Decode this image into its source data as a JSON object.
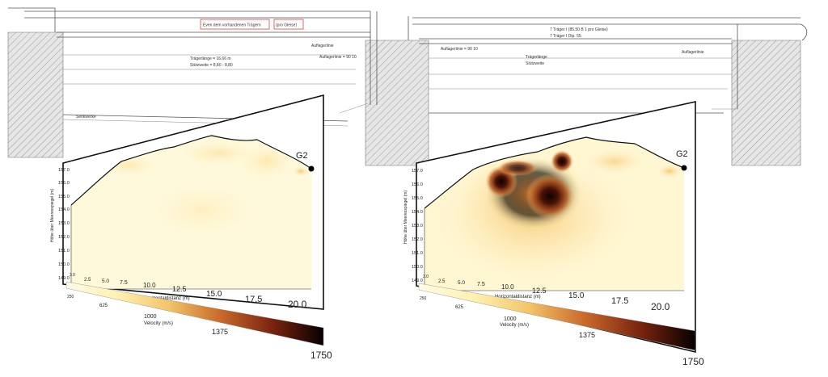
{
  "drawing": {
    "box_left_text": "Even dem vorhandenen Trägern",
    "box_right_text": "(pro Gleise)",
    "notes_left": [
      "Auflagerlinie",
      "Trägerlänge = 16.66 m",
      "Stützweite = 8,80 - 8,80",
      "Auflagerlinie = 90 10",
      "Senkwerke"
    ],
    "notes_right": [
      "7 Träger I (85.50 B 1 pro Gleise)",
      "7 Träger I Dip. 55",
      "Auflagerlinie = 90 10",
      "Trägerlänge",
      "Stützweite",
      "Auflagerlinie"
    ]
  },
  "panels": [
    {
      "label": "G2",
      "xlabel": "Horizontaldistanz (m)",
      "ylabel": "Höhe über Meeresspiegel (m)",
      "xticks": [
        "3.0",
        "2.5",
        "5.0",
        "7.5",
        "10.0",
        "12.5",
        "15.0",
        "17.5",
        "20.0"
      ],
      "yticks": [
        "157.0",
        "156.0",
        "155.0",
        "154.0",
        "153.0",
        "152.0",
        "151.0",
        "150.0",
        "149.0"
      ],
      "colorbar_label": "Velocity (m/s)",
      "colorbar_ticks": [
        "250",
        "625",
        "1000",
        "1375",
        "1750"
      ]
    },
    {
      "label": "G2",
      "xlabel": "Horizontaldistanz (m)",
      "ylabel": "Höhe über Meeresspiegel (m)",
      "xticks": [
        "3.0",
        "2.5",
        "5.0",
        "7.5",
        "10.0",
        "12.5",
        "15.0",
        "17.5",
        "20.0"
      ],
      "yticks": [
        "157.0",
        "156.0",
        "155.0",
        "154.0",
        "153.0",
        "152.0",
        "151.0",
        "150.0",
        "149.0"
      ],
      "colorbar_label": "Velocity (m/s)",
      "colorbar_ticks": [
        "250",
        "625",
        "1000",
        "1375",
        "1750"
      ]
    }
  ]
}
